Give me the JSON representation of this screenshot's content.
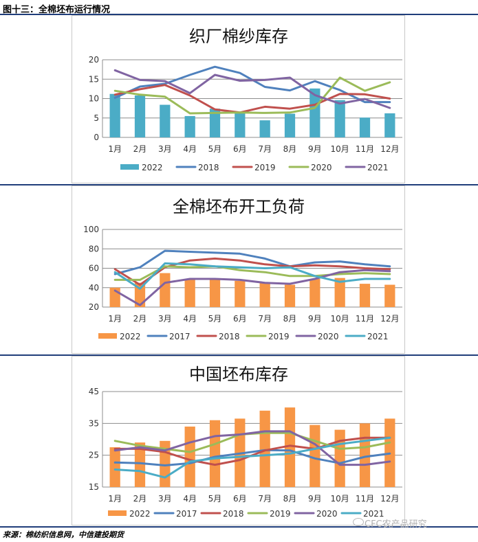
{
  "header": {
    "title": "图十三：全棉坯布运行情况"
  },
  "footer": {
    "source": "来源：棉纺织信息网，中信建投期货",
    "watermark": "CFC农产品研究"
  },
  "chart_data": [
    {
      "type": "bar+line",
      "title": "织厂棉纱库存",
      "categories": [
        "1月",
        "2月",
        "3月",
        "4月",
        "5月",
        "6月",
        "7月",
        "8月",
        "9月",
        "10月",
        "11月",
        "12月"
      ],
      "ylim": [
        0,
        20
      ],
      "yticks": [
        0,
        5,
        10,
        15,
        20
      ],
      "grid": true,
      "legend": "bottom",
      "bar_series": {
        "name": "2022",
        "color": "#4bacc6",
        "values": [
          11.2,
          10.8,
          8.4,
          5.5,
          7.4,
          6.5,
          4.4,
          6.1,
          12.6,
          9.6,
          5.1,
          6.2
        ]
      },
      "series": [
        {
          "name": "2018",
          "color": "#4f81bd",
          "values": [
            10.2,
            13.1,
            13.8,
            16.1,
            18.2,
            16.6,
            13.0,
            12.1,
            14.5,
            12.2,
            9.1,
            9.1
          ]
        },
        {
          "name": "2019",
          "color": "#c0504d",
          "values": [
            11.0,
            12.4,
            13.5,
            10.8,
            7.2,
            6.4,
            7.9,
            7.4,
            8.4,
            11.2,
            11.1,
            10.0
          ]
        },
        {
          "name": "2020",
          "color": "#9bbb59",
          "values": [
            12.0,
            11.0,
            10.5,
            6.2,
            6.3,
            6.4,
            6.3,
            6.4,
            7.6,
            15.4,
            12.0,
            14.2
          ]
        },
        {
          "name": "2021",
          "color": "#8064a2",
          "values": [
            17.3,
            14.8,
            14.5,
            11.4,
            16.1,
            14.6,
            14.8,
            15.4,
            10.9,
            8.7,
            9.9,
            7.6
          ]
        }
      ]
    },
    {
      "type": "bar+line",
      "title": "全棉坯布开工负荷",
      "categories": [
        "1月",
        "2月",
        "3月",
        "4月",
        "5月",
        "6月",
        "7月",
        "8月",
        "9月",
        "10月",
        "11月",
        "12月"
      ],
      "ylim": [
        20,
        100
      ],
      "yticks": [
        20,
        40,
        60,
        80,
        100
      ],
      "grid": true,
      "legend": "bottom",
      "bar_series": {
        "name": "2022",
        "color": "#f79646",
        "values": [
          40,
          45,
          55,
          49,
          48,
          47,
          45,
          43,
          49,
          50,
          44,
          43
        ]
      },
      "series": [
        {
          "name": "2017",
          "color": "#4f81bd",
          "values": [
            54,
            61,
            78,
            77,
            76,
            75,
            70,
            62,
            66,
            67,
            64,
            62
          ]
        },
        {
          "name": "2018",
          "color": "#c0504d",
          "values": [
            59,
            43,
            61,
            68,
            70,
            68,
            64,
            62,
            63,
            62,
            60,
            59
          ]
        },
        {
          "name": "2019",
          "color": "#9bbb59",
          "values": [
            48,
            48,
            62,
            61,
            62,
            58,
            56,
            52,
            52,
            54,
            55,
            54
          ]
        },
        {
          "name": "2020",
          "color": "#8064a2",
          "values": [
            37,
            22,
            45,
            49,
            49,
            48,
            45,
            44,
            49,
            56,
            58,
            57
          ]
        },
        {
          "name": "2021",
          "color": "#4bacc6",
          "values": [
            56,
            39,
            65,
            64,
            62,
            61,
            60,
            61,
            52,
            46,
            49,
            49
          ]
        }
      ]
    },
    {
      "type": "bar+line",
      "title": "中国坯布库存",
      "categories": [
        "1月",
        "2月",
        "3月",
        "4月",
        "5月",
        "6月",
        "7月",
        "8月",
        "9月",
        "10月",
        "11月",
        "12月"
      ],
      "ylim": [
        15,
        45
      ],
      "yticks": [
        15,
        25,
        35,
        45
      ],
      "grid": true,
      "legend": "bottom",
      "bar_series": {
        "name": "2022",
        "color": "#f79646",
        "values": [
          27.5,
          29.0,
          29.5,
          34.0,
          36.0,
          36.5,
          39.0,
          40.0,
          34.5,
          33.0,
          35.0,
          36.5
        ]
      },
      "series": [
        {
          "name": "2017",
          "color": "#4f81bd",
          "values": [
            22.7,
            22.5,
            21.8,
            22.5,
            24.5,
            25.5,
            26.6,
            26.5,
            24.0,
            22.5,
            24.5,
            25.5
          ]
        },
        {
          "name": "2018",
          "color": "#c0504d",
          "values": [
            27.0,
            27.0,
            26.0,
            23.5,
            22.0,
            23.5,
            26.5,
            28.0,
            27.0,
            29.5,
            30.5,
            30.5
          ]
        },
        {
          "name": "2019",
          "color": "#9bbb59",
          "values": [
            29.5,
            28.0,
            27.0,
            26.0,
            28.5,
            31.5,
            32.0,
            32.0,
            29.5,
            27.0,
            27.5,
            29.0
          ]
        },
        {
          "name": "2020",
          "color": "#8064a2",
          "values": [
            26.5,
            27.5,
            26.5,
            29.0,
            31.0,
            31.5,
            32.5,
            32.5,
            28.5,
            22.0,
            22.0,
            23.0
          ]
        },
        {
          "name": "2021",
          "color": "#4bacc6",
          "values": [
            20.5,
            20.0,
            18.0,
            23.0,
            24.0,
            24.5,
            25.0,
            25.5,
            27.0,
            28.5,
            29.5,
            30.5
          ]
        }
      ]
    }
  ]
}
